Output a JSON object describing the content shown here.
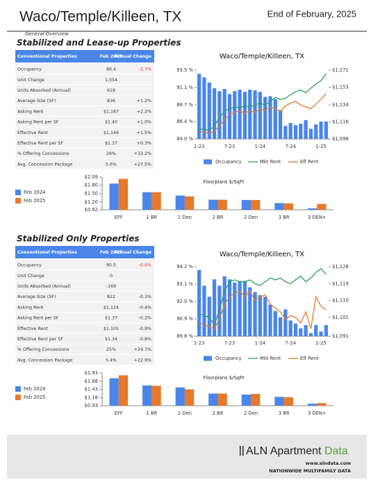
{
  "header": {
    "title": "Waco/Temple/Killeen, TX",
    "date": "End of February, 2025",
    "subtitle": "General Overview"
  },
  "sections": [
    {
      "title": "Stabilized and Lease-up Properties",
      "table": {
        "header": [
          "Conventional Properties",
          "Feb 2025",
          "Annual Change"
        ],
        "rows": [
          [
            "Occupancy",
            "86.4",
            "-2.7%"
          ],
          [
            "Unit Change",
            "1,554"
          ],
          [
            "Units Absorbed (Annual)",
            "619"
          ],
          [
            "Average Size (SF)",
            "836",
            "+1.2%"
          ],
          [
            "Asking Rent",
            "$1,167",
            "+2.2%"
          ],
          [
            "Asking Rent per SF",
            "$1.40",
            "+1.0%"
          ],
          [
            "Effective Rent",
            "$1,146",
            "+1.5%"
          ],
          [
            "Effective Rent per SF",
            "$1.37",
            "+0.3%"
          ],
          [
            "% Offering Concessions",
            "26%",
            "+33.2%"
          ],
          [
            "Avg. Concession Package",
            "5.6%",
            "+27.5%"
          ]
        ]
      }
    },
    {
      "title": "Stabilized Only Properties",
      "table": {
        "header": [
          "Conventional Properties",
          "Feb 2025",
          "Annual Change"
        ],
        "rows": [
          [
            "Occupancy",
            "90.5",
            "-0.6%"
          ],
          [
            "Unit Change",
            "0"
          ],
          [
            "Units Absorbed (Annual)",
            "-169"
          ],
          [
            "Average Size (SF)",
            "822",
            "-0.1%"
          ],
          [
            "Asking Rent",
            "$1,124",
            "-0.4%"
          ],
          [
            "Asking Rent per SF",
            "$1.37",
            "-0.2%"
          ],
          [
            "Effective Rent",
            "$1,105",
            "-0.9%"
          ],
          [
            "Effective Rent per SF",
            "$1.34",
            "-0.8%"
          ],
          [
            "% Offering Concessions",
            "25%",
            "+29.7%"
          ],
          [
            "Avg. Concession Package",
            "5.4%",
            "+22.9%"
          ]
        ]
      }
    }
  ],
  "chart_data": [
    {
      "type": "combo",
      "title": "Waco/Temple/Killeen, TX",
      "categories": [
        "1-23",
        null,
        null,
        null,
        null,
        null,
        "7-23",
        null,
        null,
        null,
        null,
        null,
        "1-24",
        null,
        null,
        null,
        null,
        null,
        "7-24",
        null,
        null,
        null,
        null,
        null,
        "1-25",
        null
      ],
      "ylim": [
        84.0,
        93.5
      ],
      "yticks": [
        {
          "value": 84.0,
          "label": "84.0 %"
        },
        {
          "value": 86.4,
          "label": "86.4 %"
        },
        {
          "value": 88.7,
          "label": "88.7 %"
        },
        {
          "value": 91.1,
          "label": "91.1 %"
        },
        {
          "value": 93.5,
          "label": "93.5 %"
        }
      ],
      "y2lim": [
        1098,
        1171
      ],
      "y2ticks": [
        {
          "value": 1098,
          "label": "$1,098"
        },
        {
          "value": 1116,
          "label": "$1,116"
        },
        {
          "value": 1134,
          "label": "$1,134"
        },
        {
          "value": 1153,
          "label": "$1,153"
        },
        {
          "value": 1171,
          "label": "$1,171"
        }
      ],
      "series": [
        {
          "name": "Occupancy",
          "type": "bar",
          "color": "#4a86e8",
          "values": [
            93.0,
            92.5,
            91.8,
            91.0,
            90.6,
            90.9,
            90.2,
            90.6,
            90.8,
            90.5,
            90.8,
            90.7,
            90.5,
            89.8,
            89.9,
            89.5,
            88.0,
            85.8,
            86.2,
            85.9,
            86.1,
            86.6,
            85.4,
            86.0,
            86.4,
            86.4
          ]
        },
        {
          "name": "Mkt Rent",
          "type": "line",
          "axis": "y2",
          "color": "#2e9e5b",
          "values": [
            1109,
            1108,
            1107,
            1112,
            1120,
            1128,
            1130,
            1132,
            1131,
            1133,
            1132,
            1134,
            1136,
            1134,
            1138,
            1142,
            1140,
            1141,
            1145,
            1148,
            1150,
            1147,
            1152,
            1156,
            1160,
            1167
          ]
        },
        {
          "name": "Eff Rent",
          "type": "line",
          "axis": "y2",
          "color": "#e8792a",
          "values": [
            1106,
            1105,
            1104,
            1106,
            1112,
            1118,
            1124,
            1126,
            1128,
            1125,
            1128,
            1126,
            1130,
            1128,
            1132,
            1130,
            1127,
            1133,
            1136,
            1138,
            1134,
            1132,
            1130,
            1135,
            1140,
            1146
          ]
        }
      ]
    },
    {
      "type": "bar",
      "title": "Floorplans $/SqFt",
      "categories": [
        "EFF",
        "1 BR",
        "1 Den",
        "2 BR",
        "2 Den",
        "3 BR",
        "3 DEN+"
      ],
      "ylim": [
        0.92,
        2.09
      ],
      "yticks": [
        {
          "value": 0.92,
          "label": "$0.92"
        },
        {
          "value": 1.2,
          "label": "$1.20"
        },
        {
          "value": 1.5,
          "label": "$1.50"
        },
        {
          "value": 1.8,
          "label": "$1.80"
        },
        {
          "value": 2.09,
          "label": "$2.09"
        }
      ],
      "series": [
        {
          "name": "Feb 2024",
          "color": "#4a86e8",
          "values": [
            1.86,
            1.55,
            1.43,
            1.28,
            1.27,
            1.16,
            0.97
          ]
        },
        {
          "name": "Feb 2025",
          "color": "#e8792a",
          "values": [
            2.03,
            1.55,
            1.4,
            1.28,
            1.27,
            1.15,
            1.13
          ]
        }
      ]
    },
    {
      "type": "combo",
      "title": "Waco/Temple/Killeen, TX",
      "categories": [
        "1-23",
        null,
        null,
        null,
        null,
        null,
        "7-23",
        null,
        null,
        null,
        null,
        null,
        "1-24",
        null,
        null,
        null,
        null,
        null,
        "7-24",
        null,
        null,
        null,
        null,
        null,
        "1-25",
        null
      ],
      "ylim": [
        89.8,
        94.2
      ],
      "yticks": [
        {
          "value": 89.8,
          "label": "89.8 %"
        },
        {
          "value": 90.9,
          "label": "90.9 %"
        },
        {
          "value": 92.0,
          "label": "92.0 %"
        },
        {
          "value": 93.1,
          "label": "93.1 %"
        },
        {
          "value": 94.2,
          "label": "94.2 %"
        }
      ],
      "y2lim": [
        1091,
        1128
      ],
      "y2ticks": [
        {
          "value": 1091,
          "label": "$1,091"
        },
        {
          "value": 1101,
          "label": "$1,101"
        },
        {
          "value": 1110,
          "label": "$1,110"
        },
        {
          "value": 1119,
          "label": "$1,119"
        },
        {
          "value": 1128,
          "label": "$1,128"
        }
      ],
      "series": [
        {
          "name": "Occupancy",
          "type": "bar",
          "color": "#4a86e8",
          "values": [
            94.0,
            93.0,
            92.3,
            93.4,
            93.0,
            93.6,
            93.4,
            93.2,
            93.3,
            93.3,
            92.9,
            92.6,
            92.4,
            92.3,
            91.8,
            91.4,
            91.0,
            91.5,
            90.8,
            90.6,
            90.3,
            90.5,
            90.0,
            90.5,
            90.1,
            90.5
          ]
        },
        {
          "name": "Mkt Rent",
          "type": "line",
          "axis": "y2",
          "color": "#2e9e5b",
          "values": [
            1103,
            1102,
            1101,
            1097,
            1105,
            1115,
            1120,
            1121,
            1120,
            1120,
            1121,
            1119,
            1118,
            1120,
            1122,
            1121,
            1122,
            1120,
            1119,
            1121,
            1123,
            1120,
            1122,
            1125,
            1127,
            1124
          ]
        },
        {
          "name": "Eff Rent",
          "type": "line",
          "axis": "y2",
          "color": "#e8792a",
          "values": [
            1098,
            1097,
            1096,
            1095,
            1100,
            1108,
            1112,
            1114,
            1115,
            1112,
            1115,
            1110,
            1112,
            1113,
            1108,
            1106,
            1104,
            1100,
            1102,
            1101,
            1098,
            1104,
            1095,
            1112,
            1107,
            1105
          ]
        }
      ]
    },
    {
      "type": "bar",
      "title": "Floorplans $/SqFt",
      "categories": [
        "EFF",
        "1 BR",
        "1 Den",
        "2 BR",
        "2 Den",
        "3 BR",
        "3 DEN+"
      ],
      "ylim": [
        0.93,
        1.93
      ],
      "yticks": [
        {
          "value": 0.93,
          "label": "$0.93"
        },
        {
          "value": 1.18,
          "label": "$1.18"
        },
        {
          "value": 1.43,
          "label": "$1.43"
        },
        {
          "value": 1.68,
          "label": "$1.68"
        },
        {
          "value": 1.93,
          "label": "$1.93"
        }
      ],
      "series": [
        {
          "name": "Feb 2024",
          "color": "#4a86e8",
          "values": [
            1.77,
            1.55,
            1.49,
            1.3,
            1.27,
            1.2,
            0.99
          ]
        },
        {
          "name": "Feb 2025",
          "color": "#e8792a",
          "values": [
            1.86,
            1.54,
            1.43,
            1.3,
            1.29,
            1.19,
            1.01
          ]
        }
      ]
    }
  ],
  "footer": {
    "brand": "ALN Apartment",
    "brand_accent": "Data",
    "url": "www.alndata.com",
    "tagline": "NATIONWIDE MULTIFAMILY DATA"
  }
}
